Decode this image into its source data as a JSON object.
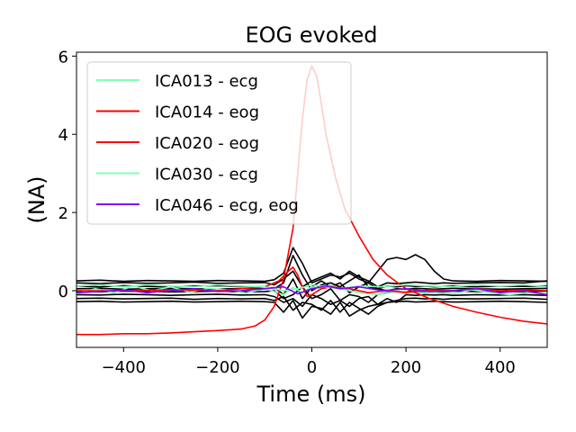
{
  "chart_data": {
    "type": "line",
    "title": "EOG evoked",
    "xlabel": "Time (ms)",
    "ylabel": "(NA)",
    "xlim": [
      -500,
      500
    ],
    "ylim": [
      -1.45,
      6.1
    ],
    "xticks": [
      -400,
      -200,
      0,
      200,
      400
    ],
    "xtick_labels": [
      "−400",
      "−200",
      "0",
      "200",
      "400"
    ],
    "yticks": [
      0,
      2,
      4,
      6
    ],
    "ytick_labels": [
      "0",
      "2",
      "4",
      "6"
    ],
    "grid": false,
    "legend_position": "upper-left",
    "series": [
      {
        "name": "ICA013 - ecg",
        "color": "#80ffb4",
        "x": [
          -500,
          -460,
          -420,
          -380,
          -340,
          -300,
          -260,
          -220,
          -180,
          -140,
          -100,
          -60,
          -40,
          -20,
          0,
          20,
          40,
          60,
          100,
          140,
          180,
          220,
          260,
          300,
          340,
          380,
          420,
          460,
          500
        ],
        "y": [
          -0.08,
          0.05,
          -0.05,
          0.12,
          0.0,
          0.1,
          -0.04,
          0.06,
          0.02,
          -0.06,
          0.05,
          -0.1,
          0.08,
          -0.05,
          0.1,
          0.05,
          0.15,
          0.05,
          -0.05,
          -0.1,
          -0.02,
          -0.05,
          -0.05,
          -0.08,
          0.02,
          -0.05,
          -0.1,
          -0.05,
          -0.08
        ]
      },
      {
        "name": "ICA014 - eog",
        "color": "#ff0000",
        "x": [
          -500,
          -450,
          -400,
          -350,
          -300,
          -250,
          -200,
          -150,
          -120,
          -100,
          -80,
          -60,
          -40,
          -30,
          -20,
          -10,
          0,
          10,
          20,
          30,
          50,
          70,
          100,
          130,
          160,
          200,
          250,
          300,
          350,
          400,
          450,
          500
        ],
        "y": [
          -1.12,
          -1.12,
          -1.1,
          -1.1,
          -1.08,
          -1.05,
          -1.02,
          -0.98,
          -0.9,
          -0.75,
          -0.4,
          0.3,
          1.6,
          3.0,
          4.4,
          5.4,
          5.75,
          5.5,
          4.8,
          4.0,
          2.9,
          2.1,
          1.4,
          0.8,
          0.4,
          0.05,
          -0.2,
          -0.4,
          -0.55,
          -0.68,
          -0.78,
          -0.85
        ]
      },
      {
        "name": "ICA020 - eog",
        "color": "#ff0000",
        "x": [
          -500,
          -400,
          -300,
          -200,
          -150,
          -100,
          -70,
          -50,
          -40,
          -30,
          -20,
          -10,
          0,
          20,
          40,
          80,
          120,
          160,
          200,
          250,
          300,
          350,
          400,
          450,
          500
        ],
        "y": [
          0.0,
          0.0,
          0.02,
          0.0,
          0.05,
          0.1,
          0.25,
          0.5,
          0.6,
          0.4,
          0.1,
          -0.15,
          -0.1,
          0.05,
          0.1,
          0.05,
          -0.05,
          0.0,
          -0.05,
          0.02,
          0.0,
          0.05,
          0.0,
          0.02,
          0.0
        ]
      },
      {
        "name": "ICA030 - ecg",
        "color": "#80ffb4",
        "x": [
          -500,
          -450,
          -400,
          -350,
          -300,
          -250,
          -200,
          -150,
          -100,
          -60,
          -30,
          0,
          30,
          60,
          100,
          150,
          200,
          250,
          300,
          350,
          400,
          450,
          500
        ],
        "y": [
          0.12,
          0.15,
          0.1,
          0.15,
          0.12,
          0.1,
          0.15,
          0.12,
          0.1,
          0.0,
          0.05,
          0.15,
          0.1,
          0.05,
          0.12,
          0.1,
          0.15,
          0.12,
          0.1,
          0.15,
          0.12,
          0.15,
          0.1
        ]
      },
      {
        "name": "ICA046 - ecg, eog",
        "color": "#8000ff",
        "x": [
          -500,
          -450,
          -400,
          -350,
          -300,
          -250,
          -200,
          -150,
          -100,
          -60,
          -30,
          0,
          30,
          60,
          100,
          150,
          200,
          250,
          300,
          350,
          400,
          450,
          500
        ],
        "y": [
          -0.05,
          -0.02,
          0.02,
          -0.05,
          0.0,
          0.05,
          -0.02,
          0.0,
          0.05,
          0.1,
          -0.08,
          0.05,
          0.12,
          0.05,
          0.1,
          0.0,
          0.05,
          -0.02,
          0.0,
          0.05,
          -0.05,
          0.0,
          -0.1
        ]
      }
    ],
    "other_components": {
      "color": "#000000",
      "x": [
        -500,
        -450,
        -400,
        -350,
        -300,
        -250,
        -200,
        -150,
        -100,
        -80,
        -60,
        -40,
        -20,
        0,
        20,
        40,
        60,
        80,
        100,
        120,
        140,
        160,
        180,
        200,
        220,
        240,
        260,
        280,
        300,
        350,
        400,
        450,
        500
      ],
      "y": [
        [
          0.25,
          0.27,
          0.24,
          0.26,
          0.25,
          0.24,
          0.26,
          0.25,
          0.24,
          0.28,
          0.45,
          1.1,
          0.7,
          0.2,
          0.3,
          0.4,
          0.35,
          0.45,
          0.3,
          0.2,
          0.5,
          0.8,
          0.85,
          0.8,
          0.92,
          0.8,
          0.5,
          0.3,
          0.25,
          0.24,
          0.26,
          0.25,
          0.24
        ],
        [
          0.2,
          0.18,
          0.21,
          0.19,
          0.2,
          0.22,
          0.19,
          0.2,
          0.21,
          0.15,
          0.3,
          0.5,
          0.1,
          0.25,
          0.35,
          0.45,
          0.3,
          0.5,
          0.35,
          0.25,
          0.1,
          0.2,
          0.18,
          0.2,
          0.22,
          0.2,
          0.18,
          0.2,
          0.19,
          0.2,
          0.21,
          0.2,
          0.25
        ],
        [
          0.12,
          0.1,
          0.13,
          0.11,
          0.1,
          0.12,
          0.13,
          0.11,
          0.1,
          0.05,
          0.2,
          0.9,
          0.4,
          0.0,
          0.15,
          0.2,
          0.1,
          0.25,
          0.4,
          0.1,
          0.05,
          0.12,
          0.1,
          0.13,
          0.11,
          0.12,
          0.1,
          0.11,
          0.12,
          0.1,
          0.12,
          0.11,
          0.12
        ],
        [
          0.05,
          0.06,
          0.04,
          0.05,
          0.06,
          0.05,
          0.04,
          0.06,
          0.05,
          0.08,
          -0.1,
          0.3,
          -0.2,
          0.1,
          0.25,
          0.1,
          0.2,
          -0.05,
          0.1,
          0.2,
          0.05,
          0.0,
          0.05,
          0.04,
          0.06,
          0.05,
          0.04,
          0.05,
          0.06,
          0.05,
          0.04,
          0.05,
          0.06
        ],
        [
          -0.02,
          -0.03,
          -0.01,
          -0.02,
          -0.03,
          -0.02,
          -0.01,
          -0.03,
          -0.02,
          0.0,
          -0.2,
          -0.1,
          0.1,
          -0.2,
          -0.1,
          0.05,
          -0.25,
          -0.1,
          -0.15,
          -0.3,
          -0.1,
          -0.05,
          -0.02,
          -0.03,
          -0.01,
          -0.02,
          -0.03,
          -0.02,
          -0.01,
          -0.02,
          -0.03,
          -0.02,
          -0.01
        ],
        [
          -0.1,
          -0.11,
          -0.09,
          -0.1,
          -0.12,
          -0.1,
          -0.09,
          -0.11,
          -0.1,
          -0.15,
          -0.3,
          -0.2,
          -0.4,
          -0.1,
          -0.2,
          -0.35,
          -0.25,
          -0.4,
          -0.2,
          -0.15,
          -0.35,
          -0.2,
          -0.3,
          -0.1,
          -0.12,
          -0.1,
          -0.11,
          -0.1,
          -0.12,
          -0.1,
          -0.11,
          -0.1,
          -0.12
        ],
        [
          -0.2,
          -0.19,
          -0.21,
          -0.2,
          -0.19,
          -0.22,
          -0.2,
          -0.21,
          -0.2,
          -0.25,
          -0.15,
          -0.5,
          -0.3,
          -0.35,
          -0.5,
          -0.25,
          -0.55,
          -0.3,
          -0.45,
          -0.6,
          -0.4,
          -0.3,
          -0.25,
          -0.2,
          -0.19,
          -0.21,
          -0.2,
          -0.22,
          -0.2,
          -0.21,
          -0.2,
          -0.19,
          -0.22
        ],
        [
          -0.28,
          -0.27,
          -0.29,
          -0.28,
          -0.27,
          -0.29,
          -0.28,
          -0.27,
          -0.28,
          -0.3,
          -0.55,
          -0.25,
          -0.7,
          -0.4,
          -0.45,
          -0.6,
          -0.3,
          -0.65,
          -0.5,
          -0.4,
          -0.35,
          -0.3,
          -0.28,
          -0.27,
          -0.29,
          -0.28,
          -0.27,
          -0.28,
          -0.29,
          -0.28,
          -0.27,
          -0.28,
          -0.3
        ]
      ]
    }
  }
}
